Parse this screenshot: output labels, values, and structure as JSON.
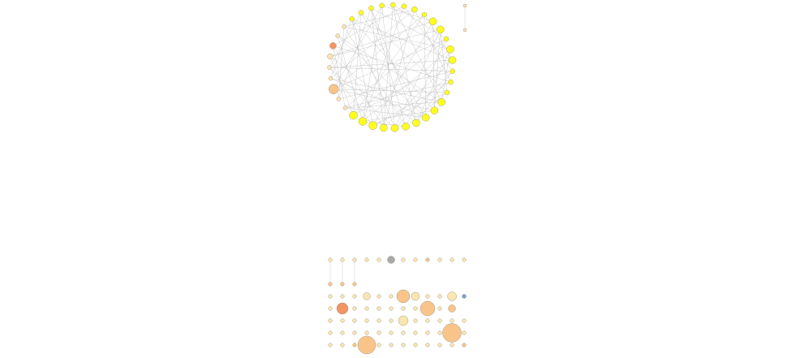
{
  "colors": {
    "background": "#ffffff",
    "edge": "#b9b9b9",
    "hub": "#ffff1a",
    "light": "#fbe5b0",
    "medium": "#f8c48a",
    "dark": "#f39464",
    "grey": "#a9a9a9",
    "blue": "#7f9fd9"
  },
  "network": {
    "ring_nodes": [
      {
        "label": "",
        "color": "hub",
        "size": 3
      },
      {
        "label": "",
        "color": "hub",
        "size": 3
      },
      {
        "label": "",
        "color": "hub",
        "size": 3.5
      },
      {
        "label": "",
        "color": "hub",
        "size": 3
      },
      {
        "label": "",
        "color": "hub",
        "size": 4.5
      },
      {
        "label": "",
        "color": "hub",
        "size": 4.5
      },
      {
        "label": "",
        "color": "hub",
        "size": 3
      },
      {
        "label": "",
        "color": "hub",
        "size": 4.5
      },
      {
        "label": "",
        "color": "hub",
        "size": 4.5
      },
      {
        "label": "",
        "color": "hub",
        "size": 3
      },
      {
        "label": "",
        "color": "hub",
        "size": 3
      },
      {
        "label": "",
        "color": "hub",
        "size": 3
      },
      {
        "label": "",
        "color": "hub",
        "size": 4.5
      },
      {
        "label": "",
        "color": "hub",
        "size": 4.5
      },
      {
        "label": "",
        "color": "hub",
        "size": 4.5
      },
      {
        "label": "",
        "color": "hub",
        "size": 4.5
      },
      {
        "label": "",
        "color": "hub",
        "size": 4.5
      },
      {
        "label": "",
        "color": "hub",
        "size": 4.5
      },
      {
        "label": "",
        "color": "hub",
        "size": 4.5
      },
      {
        "label": "",
        "color": "hub",
        "size": 5
      },
      {
        "label": "",
        "color": "hub",
        "size": 5
      },
      {
        "label": "",
        "color": "hub",
        "size": 5
      },
      {
        "label": "",
        "color": "light",
        "size": 2.5
      },
      {
        "label": "",
        "color": "light",
        "size": 2.5
      },
      {
        "label": "",
        "color": "medium",
        "size": 6
      },
      {
        "label": "",
        "color": "light",
        "size": 2.5
      },
      {
        "label": "",
        "color": "light",
        "size": 2.5
      },
      {
        "label": "",
        "color": "light",
        "size": 3.5
      },
      {
        "label": "",
        "color": "dark",
        "size": 4
      },
      {
        "label": "",
        "color": "light",
        "size": 2.5
      },
      {
        "label": "",
        "color": "light",
        "size": 2.5
      },
      {
        "label": "",
        "color": "hub",
        "size": 3
      },
      {
        "label": "",
        "color": "hub",
        "size": 3
      },
      {
        "label": "",
        "color": "hub",
        "size": 3
      },
      {
        "label": "",
        "color": "hub",
        "size": 3
      }
    ],
    "edges": [
      [
        0,
        12
      ],
      [
        0,
        15
      ],
      [
        1,
        20
      ],
      [
        1,
        9
      ],
      [
        2,
        18
      ],
      [
        2,
        25
      ],
      [
        3,
        14
      ],
      [
        3,
        21
      ],
      [
        4,
        13
      ],
      [
        4,
        19
      ],
      [
        4,
        27
      ],
      [
        5,
        11
      ],
      [
        5,
        17
      ],
      [
        5,
        22
      ],
      [
        6,
        16
      ],
      [
        6,
        24
      ],
      [
        7,
        20
      ],
      [
        7,
        12
      ],
      [
        7,
        30
      ],
      [
        8,
        18
      ],
      [
        8,
        21
      ],
      [
        8,
        26
      ],
      [
        9,
        23
      ],
      [
        9,
        15
      ],
      [
        10,
        19
      ],
      [
        10,
        28
      ],
      [
        11,
        24
      ],
      [
        11,
        16
      ],
      [
        12,
        29
      ],
      [
        12,
        22
      ],
      [
        13,
        31
      ],
      [
        13,
        20
      ],
      [
        14,
        25
      ],
      [
        14,
        32
      ],
      [
        15,
        27
      ],
      [
        16,
        30
      ],
      [
        16,
        33
      ],
      [
        17,
        26
      ],
      [
        17,
        34
      ],
      [
        18,
        28
      ],
      [
        18,
        33
      ],
      [
        19,
        31
      ],
      [
        20,
        34
      ],
      [
        20,
        29
      ],
      [
        21,
        32
      ],
      [
        21,
        27
      ],
      [
        22,
        28
      ],
      [
        23,
        30
      ],
      [
        23,
        33
      ],
      [
        24,
        34
      ],
      [
        25,
        31
      ],
      [
        26,
        32
      ],
      [
        0,
        18
      ],
      [
        1,
        28
      ],
      [
        2,
        30
      ],
      [
        3,
        24
      ],
      [
        4,
        34
      ],
      [
        5,
        27
      ],
      [
        6,
        21
      ],
      [
        7,
        33
      ],
      [
        8,
        31
      ],
      [
        9,
        26
      ],
      [
        10,
        22
      ],
      [
        11,
        32
      ],
      [
        12,
        25
      ],
      [
        13,
        24
      ],
      [
        14,
        29
      ],
      [
        15,
        33
      ],
      [
        16,
        20
      ],
      [
        17,
        31
      ],
      [
        19,
        26
      ],
      [
        0,
        6
      ],
      [
        2,
        10
      ],
      [
        3,
        8
      ],
      [
        5,
        13
      ],
      [
        7,
        15
      ],
      [
        9,
        17
      ],
      [
        11,
        19
      ],
      [
        14,
        22
      ]
    ],
    "isolated_pair": [
      {
        "label": "",
        "color": "light",
        "size": 2
      },
      {
        "label": "",
        "color": "light",
        "size": 2
      }
    ],
    "grid_nodes": [
      {
        "label": "",
        "color": "light",
        "size": 2.3
      },
      {
        "label": "",
        "color": "light",
        "size": 2.3
      },
      {
        "label": "",
        "color": "light",
        "size": 2.3
      },
      {
        "label": "",
        "color": "light",
        "size": 2.3
      },
      {
        "label": "",
        "color": "light",
        "size": 2.3
      },
      {
        "label": "",
        "color": "grey",
        "size": 4.5
      },
      {
        "label": "",
        "color": "light",
        "size": 2.3
      },
      {
        "label": "",
        "color": "light",
        "size": 2.3
      },
      {
        "label": "",
        "color": "medium",
        "size": 2.3
      },
      {
        "label": "",
        "color": "light",
        "size": 2.3
      },
      {
        "label": "",
        "color": "light",
        "size": 2.3
      },
      {
        "label": "",
        "color": "light",
        "size": 2.3
      },
      {
        "label": "",
        "color": "medium",
        "size": 2.3
      },
      {
        "label": "",
        "color": "medium",
        "size": 2.3
      },
      {
        "label": "",
        "color": "medium",
        "size": 2.3
      },
      {
        "label": "",
        "color": "light",
        "size": 2.3
      },
      {
        "label": "",
        "color": "light",
        "size": 2.3
      },
      {
        "label": "",
        "color": "light",
        "size": 2.3
      },
      {
        "label": "",
        "color": "light",
        "size": 4.5
      },
      {
        "label": "",
        "color": "light",
        "size": 2.3
      },
      {
        "label": "",
        "color": "light",
        "size": 2.3
      },
      {
        "label": "",
        "color": "medium",
        "size": 8
      },
      {
        "label": "",
        "color": "light",
        "size": 5
      },
      {
        "label": "",
        "color": "light",
        "size": 2.3
      },
      {
        "label": "",
        "color": "light",
        "size": 2.3
      },
      {
        "label": "",
        "color": "light",
        "size": 5.5
      },
      {
        "label": "",
        "color": "blue",
        "size": 2.5
      },
      {
        "label": "",
        "color": "light",
        "size": 2.3
      },
      {
        "label": "",
        "color": "dark",
        "size": 7
      },
      {
        "label": "",
        "color": "light",
        "size": 2.3
      },
      {
        "label": "",
        "color": "light",
        "size": 2.3
      },
      {
        "label": "",
        "color": "light",
        "size": 2.3
      },
      {
        "label": "",
        "color": "light",
        "size": 2.3
      },
      {
        "label": "",
        "color": "light",
        "size": 2.3
      },
      {
        "label": "",
        "color": "light",
        "size": 2.3
      },
      {
        "label": "",
        "color": "medium",
        "size": 9
      },
      {
        "label": "",
        "color": "light",
        "size": 2.3
      },
      {
        "label": "",
        "color": "medium",
        "size": 4.5
      },
      {
        "label": "",
        "color": "light",
        "size": 2.3
      },
      {
        "label": "",
        "color": "light",
        "size": 2.3
      },
      {
        "label": "",
        "color": "light",
        "size": 2.3
      },
      {
        "label": "",
        "color": "light",
        "size": 2.3
      },
      {
        "label": "",
        "color": "light",
        "size": 2.3
      },
      {
        "label": "",
        "color": "light",
        "size": 2.3
      },
      {
        "label": "",
        "color": "light",
        "size": 6
      },
      {
        "label": "",
        "color": "light",
        "size": 2.3
      },
      {
        "label": "",
        "color": "light",
        "size": 2.3
      },
      {
        "label": "",
        "color": "light",
        "size": 2.3
      },
      {
        "label": "",
        "color": "light",
        "size": 2.3
      },
      {
        "label": "",
        "color": "light",
        "size": 2.3
      },
      {
        "label": "",
        "color": "light",
        "size": 2.3
      },
      {
        "label": "",
        "color": "light",
        "size": 2.3
      },
      {
        "label": "",
        "color": "light",
        "size": 2.3
      },
      {
        "label": "",
        "color": "light",
        "size": 2.3
      },
      {
        "label": "",
        "color": "light",
        "size": 2.3
      },
      {
        "label": "",
        "color": "light",
        "size": 2.3
      },
      {
        "label": "",
        "color": "light",
        "size": 2.3
      },
      {
        "label": "",
        "color": "light",
        "size": 2.3
      },
      {
        "label": "",
        "color": "light",
        "size": 2.3
      },
      {
        "label": "",
        "color": "light",
        "size": 2.3
      },
      {
        "label": "",
        "color": "medium",
        "size": 11.5
      },
      {
        "label": "",
        "color": "light",
        "size": 2.3
      },
      {
        "label": "",
        "color": "light",
        "size": 2.3
      },
      {
        "label": "",
        "color": "light",
        "size": 2.3
      },
      {
        "label": "",
        "color": "medium",
        "size": 2.3
      },
      {
        "label": "",
        "color": "medium",
        "size": 11
      },
      {
        "label": "",
        "color": "light",
        "size": 2.3
      },
      {
        "label": "",
        "color": "light",
        "size": 2.3
      },
      {
        "label": "",
        "color": "light",
        "size": 2.3
      },
      {
        "label": "",
        "color": "light",
        "size": 2.3
      },
      {
        "label": "",
        "color": "light",
        "size": 2.3
      },
      {
        "label": "",
        "color": "light",
        "size": 2.3
      },
      {
        "label": "",
        "color": "light",
        "size": 2.3
      },
      {
        "label": "",
        "color": "medium",
        "size": 2.3
      }
    ]
  }
}
